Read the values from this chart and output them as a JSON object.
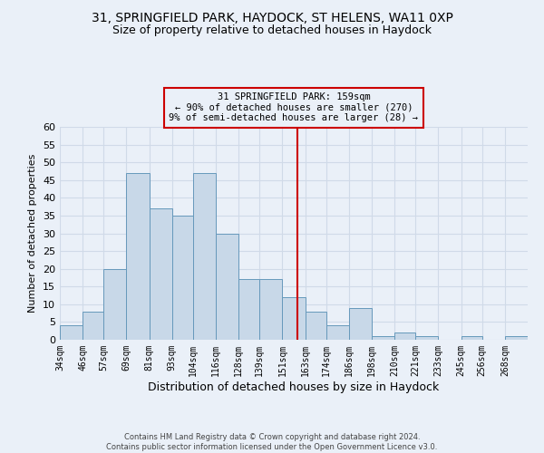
{
  "title1": "31, SPRINGFIELD PARK, HAYDOCK, ST HELENS, WA11 0XP",
  "title2": "Size of property relative to detached houses in Haydock",
  "xlabel": "Distribution of detached houses by size in Haydock",
  "ylabel": "Number of detached properties",
  "footer1": "Contains HM Land Registry data © Crown copyright and database right 2024.",
  "footer2": "Contains public sector information licensed under the Open Government Licence v3.0.",
  "annotation_line1": "31 SPRINGFIELD PARK: 159sqm",
  "annotation_line2": "← 90% of detached houses are smaller (270)",
  "annotation_line3": "9% of semi-detached houses are larger (28) →",
  "bar_color": "#c8d8e8",
  "bar_edge_color": "#6699bb",
  "vline_x": 159,
  "vline_color": "#cc0000",
  "categories": [
    "34sqm",
    "46sqm",
    "57sqm",
    "69sqm",
    "81sqm",
    "93sqm",
    "104sqm",
    "116sqm",
    "128sqm",
    "139sqm",
    "151sqm",
    "163sqm",
    "174sqm",
    "186sqm",
    "198sqm",
    "210sqm",
    "221sqm",
    "233sqm",
    "245sqm",
    "256sqm",
    "268sqm"
  ],
  "values": [
    4,
    8,
    20,
    47,
    37,
    35,
    47,
    30,
    17,
    17,
    12,
    8,
    4,
    9,
    1,
    2,
    1,
    0,
    1,
    0,
    1
  ],
  "bin_edges": [
    34,
    46,
    57,
    69,
    81,
    93,
    104,
    116,
    128,
    139,
    151,
    163,
    174,
    186,
    198,
    210,
    221,
    233,
    245,
    256,
    268,
    280
  ],
  "ylim": [
    0,
    60
  ],
  "yticks": [
    0,
    5,
    10,
    15,
    20,
    25,
    30,
    35,
    40,
    45,
    50,
    55,
    60
  ],
  "bg_color": "#eaf0f8",
  "grid_color": "#d0dae8",
  "title1_fontsize": 10,
  "title2_fontsize": 9,
  "xlabel_fontsize": 9,
  "ylabel_fontsize": 8,
  "annotation_box_edgecolor": "#cc0000",
  "annotation_fontsize": 7.5,
  "tick_fontsize": 7,
  "footer_fontsize": 6
}
